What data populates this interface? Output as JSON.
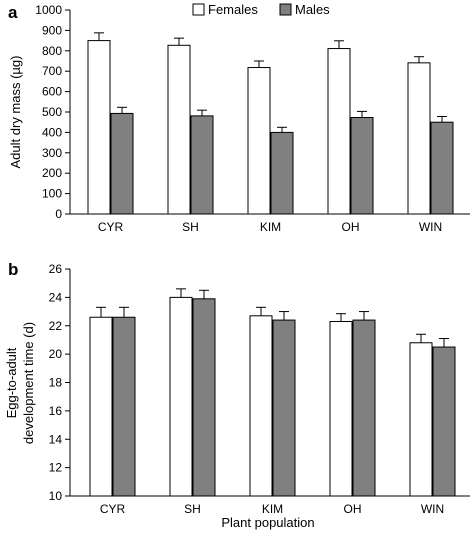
{
  "figure": {
    "legend": [
      "Females",
      "Males"
    ],
    "xlabel": "Plant population"
  },
  "colors": {
    "females": "#ffffff",
    "males": "#808080",
    "axis": "#000000"
  },
  "chart_data": [
    {
      "panel": "a",
      "type": "bar",
      "categories": [
        "CYR",
        "SH",
        "KIM",
        "OH",
        "WIN"
      ],
      "series": [
        {
          "name": "Females",
          "values": [
            850,
            827,
            718,
            811,
            741
          ],
          "errors": [
            38,
            35,
            32,
            38,
            30
          ]
        },
        {
          "name": "Males",
          "values": [
            493,
            481,
            400,
            473,
            450
          ],
          "errors": [
            30,
            28,
            25,
            30,
            28
          ]
        }
      ],
      "ylabel": "Adult dry mass (µg)",
      "xlabel": "",
      "ylim": [
        0,
        1000
      ],
      "yticks": [
        0,
        100,
        200,
        300,
        400,
        500,
        600,
        700,
        800,
        900,
        1000
      ],
      "grid": false,
      "legend_placement": "top-center"
    },
    {
      "panel": "b",
      "type": "bar",
      "categories": [
        "CYR",
        "SH",
        "KIM",
        "OH",
        "WIN"
      ],
      "series": [
        {
          "name": "Females",
          "values": [
            22.6,
            24.0,
            22.7,
            22.3,
            20.8
          ],
          "errors": [
            0.7,
            0.6,
            0.6,
            0.55,
            0.6
          ]
        },
        {
          "name": "Males",
          "values": [
            22.6,
            23.9,
            22.4,
            22.4,
            20.5
          ],
          "errors": [
            0.7,
            0.6,
            0.6,
            0.6,
            0.6
          ]
        }
      ],
      "ylabel_lines": [
        "Egg-to-adult",
        "development  time (d)"
      ],
      "xlabel": "Plant population",
      "ylim": [
        10,
        26
      ],
      "yticks": [
        10,
        12,
        14,
        16,
        18,
        20,
        22,
        24,
        26
      ],
      "grid": false
    }
  ]
}
